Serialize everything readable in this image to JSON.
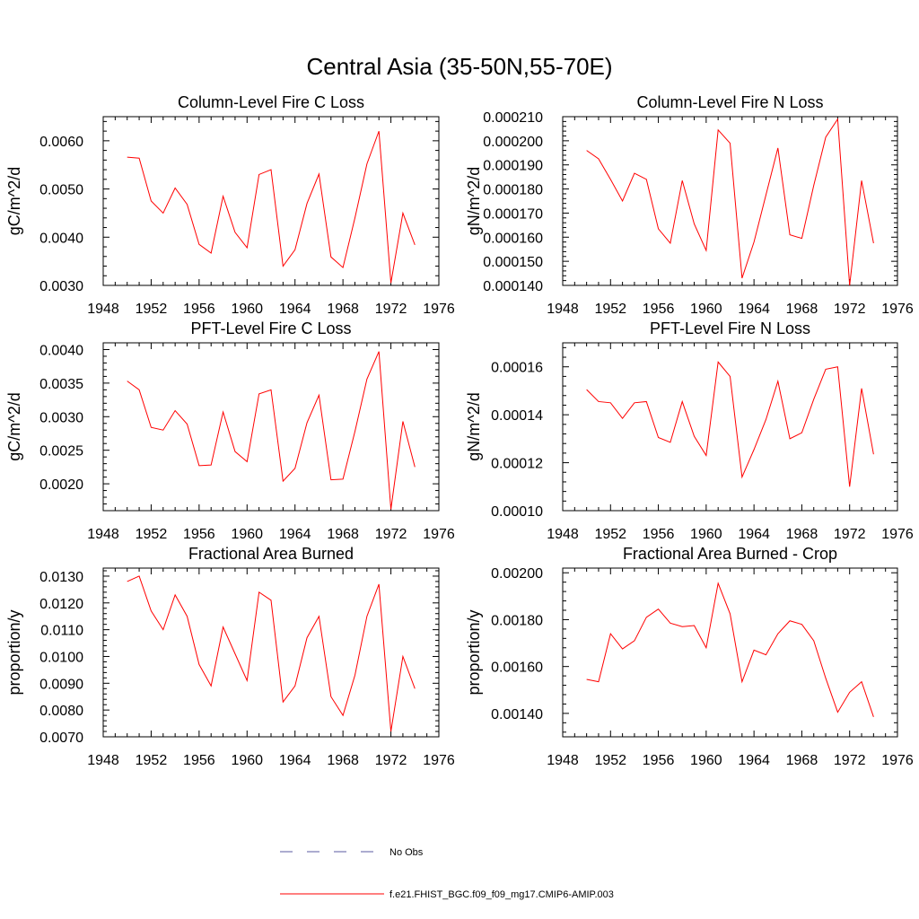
{
  "figure_title": "Central Asia (35-50N,55-70E)",
  "legend": {
    "items": [
      {
        "label": "No Obs",
        "style": "dashed",
        "color": "#5a5aa0"
      },
      {
        "label": "f.e21.FHIST_BGC.f09_f09_mg17.CMIP6-AMIP.003",
        "style": "solid",
        "color": "#ff0000"
      }
    ]
  },
  "chart_data": [
    {
      "type": "line",
      "title": "Column-Level Fire C Loss",
      "ylabel": "gC/m^2/d",
      "xlim": [
        1948,
        1976
      ],
      "ylim": [
        0.003,
        0.0065
      ],
      "xticks": [
        "1948",
        "1952",
        "1956",
        "1960",
        "1964",
        "1968",
        "1972",
        "1976"
      ],
      "yticks": [
        "0.0030",
        "0.0040",
        "0.0050",
        "0.0060"
      ],
      "x": [
        1950,
        1951,
        1952,
        1953,
        1954,
        1955,
        1956,
        1957,
        1958,
        1959,
        1960,
        1961,
        1962,
        1963,
        1964,
        1965,
        1966,
        1967,
        1968,
        1969,
        1970,
        1971,
        1972,
        1973,
        1974
      ],
      "series": [
        {
          "values": [
            0.00566,
            0.00564,
            0.00475,
            0.0045,
            0.00502,
            0.00468,
            0.00385,
            0.00367,
            0.00485,
            0.0041,
            0.00378,
            0.0053,
            0.0054,
            0.0034,
            0.00374,
            0.0047,
            0.00531,
            0.00359,
            0.00337,
            0.0044,
            0.00552,
            0.0062,
            0.00305,
            0.0045,
            0.00384
          ]
        }
      ]
    },
    {
      "type": "line",
      "title": "Column-Level Fire N Loss",
      "ylabel": "gN/m^2/d",
      "xlim": [
        1948,
        1976
      ],
      "ylim": [
        0.00014,
        0.00021
      ],
      "xticks": [
        "1948",
        "1952",
        "1956",
        "1960",
        "1964",
        "1968",
        "1972",
        "1976"
      ],
      "yticks": [
        "0.000140",
        "0.000150",
        "0.000160",
        "0.000170",
        "0.000180",
        "0.000190",
        "0.000200",
        "0.000210"
      ],
      "x": [
        1950,
        1951,
        1952,
        1953,
        1954,
        1955,
        1956,
        1957,
        1958,
        1959,
        1960,
        1961,
        1962,
        1963,
        1964,
        1965,
        1966,
        1967,
        1968,
        1969,
        1970,
        1971,
        1972,
        1973,
        1974
      ],
      "series": [
        {
          "values": [
            0.000196,
            0.0001925,
            0.000184,
            0.000175,
            0.0001865,
            0.000184,
            0.0001635,
            0.0001575,
            0.0001835,
            0.0001655,
            0.0001545,
            0.0002045,
            0.000199,
            0.000143,
            0.000158,
            0.0001775,
            0.000197,
            0.000161,
            0.0001595,
            0.0001815,
            0.0002015,
            0.000209,
            0.00014,
            0.0001835,
            0.0001575
          ]
        }
      ]
    },
    {
      "type": "line",
      "title": "PFT-Level Fire C Loss",
      "ylabel": "gC/m^2/d",
      "xlim": [
        1948,
        1976
      ],
      "ylim": [
        0.0016,
        0.0041
      ],
      "xticks": [
        "1948",
        "1952",
        "1956",
        "1960",
        "1964",
        "1968",
        "1972",
        "1976"
      ],
      "yticks": [
        "0.0020",
        "0.0025",
        "0.0030",
        "0.0035",
        "0.0040"
      ],
      "x": [
        1950,
        1951,
        1952,
        1953,
        1954,
        1955,
        1956,
        1957,
        1958,
        1959,
        1960,
        1961,
        1962,
        1963,
        1964,
        1965,
        1966,
        1967,
        1968,
        1969,
        1970,
        1971,
        1972,
        1973,
        1974
      ],
      "series": [
        {
          "values": [
            0.00353,
            0.0034,
            0.00284,
            0.0028,
            0.00309,
            0.00289,
            0.00227,
            0.00228,
            0.00307,
            0.00248,
            0.00233,
            0.00334,
            0.0034,
            0.00204,
            0.00223,
            0.00291,
            0.00332,
            0.00206,
            0.00207,
            0.00278,
            0.00356,
            0.00397,
            0.00162,
            0.00293,
            0.00225
          ]
        }
      ]
    },
    {
      "type": "line",
      "title": "PFT-Level Fire N Loss",
      "ylabel": "gN/m^2/d",
      "xlim": [
        1948,
        1976
      ],
      "ylim": [
        0.0001,
        0.00017
      ],
      "xticks": [
        "1948",
        "1952",
        "1956",
        "1960",
        "1964",
        "1968",
        "1972",
        "1976"
      ],
      "yticks": [
        "0.00010",
        "0.00012",
        "0.00014",
        "0.00016"
      ],
      "x": [
        1950,
        1951,
        1952,
        1953,
        1954,
        1955,
        1956,
        1957,
        1958,
        1959,
        1960,
        1961,
        1962,
        1963,
        1964,
        1965,
        1966,
        1967,
        1968,
        1969,
        1970,
        1971,
        1972,
        1973,
        1974
      ],
      "series": [
        {
          "values": [
            0.0001505,
            0.0001455,
            0.000145,
            0.0001385,
            0.000145,
            0.0001455,
            0.0001305,
            0.0001285,
            0.0001455,
            0.000131,
            0.000123,
            0.000162,
            0.000156,
            0.000114,
            0.0001255,
            0.000138,
            0.000154,
            0.00013,
            0.0001325,
            0.0001465,
            0.000159,
            0.00016,
            0.00011,
            0.000151,
            0.0001235
          ]
        }
      ]
    },
    {
      "type": "line",
      "title": "Fractional Area Burned",
      "ylabel": "proportion/y",
      "xlim": [
        1948,
        1976
      ],
      "ylim": [
        0.007,
        0.0133
      ],
      "xticks": [
        "1948",
        "1952",
        "1956",
        "1960",
        "1964",
        "1968",
        "1972",
        "1976"
      ],
      "yticks": [
        "0.0070",
        "0.0080",
        "0.0090",
        "0.0100",
        "0.0110",
        "0.0120",
        "0.0130"
      ],
      "x": [
        1950,
        1951,
        1952,
        1953,
        1954,
        1955,
        1956,
        1957,
        1958,
        1959,
        1960,
        1961,
        1962,
        1963,
        1964,
        1965,
        1966,
        1967,
        1968,
        1969,
        1970,
        1971,
        1972,
        1973,
        1974
      ],
      "series": [
        {
          "values": [
            0.0128,
            0.013,
            0.0117,
            0.011,
            0.0123,
            0.0115,
            0.0097,
            0.0089,
            0.0111,
            0.0101,
            0.0091,
            0.0124,
            0.0121,
            0.0083,
            0.0089,
            0.0107,
            0.0115,
            0.0085,
            0.0078,
            0.0093,
            0.0115,
            0.0127,
            0.0072,
            0.01,
            0.0088
          ]
        }
      ]
    },
    {
      "type": "line",
      "title": "Fractional Area Burned - Crop",
      "ylabel": "proportion/y",
      "xlim": [
        1948,
        1976
      ],
      "ylim": [
        0.0013,
        0.00202
      ],
      "xticks": [
        "1948",
        "1952",
        "1956",
        "1960",
        "1964",
        "1968",
        "1972",
        "1976"
      ],
      "yticks": [
        "0.00140",
        "0.00160",
        "0.00180",
        "0.00200"
      ],
      "x": [
        1950,
        1951,
        1952,
        1953,
        1954,
        1955,
        1956,
        1957,
        1958,
        1959,
        1960,
        1961,
        1962,
        1963,
        1964,
        1965,
        1966,
        1967,
        1968,
        1969,
        1970,
        1971,
        1972,
        1973,
        1974
      ],
      "series": [
        {
          "values": [
            0.001545,
            0.001535,
            0.00174,
            0.001675,
            0.00171,
            0.00181,
            0.001845,
            0.001785,
            0.00177,
            0.001775,
            0.00168,
            0.001955,
            0.001825,
            0.001535,
            0.00167,
            0.00165,
            0.00174,
            0.001795,
            0.00178,
            0.00171,
            0.00155,
            0.001405,
            0.00149,
            0.001535,
            0.001385
          ]
        }
      ]
    }
  ]
}
